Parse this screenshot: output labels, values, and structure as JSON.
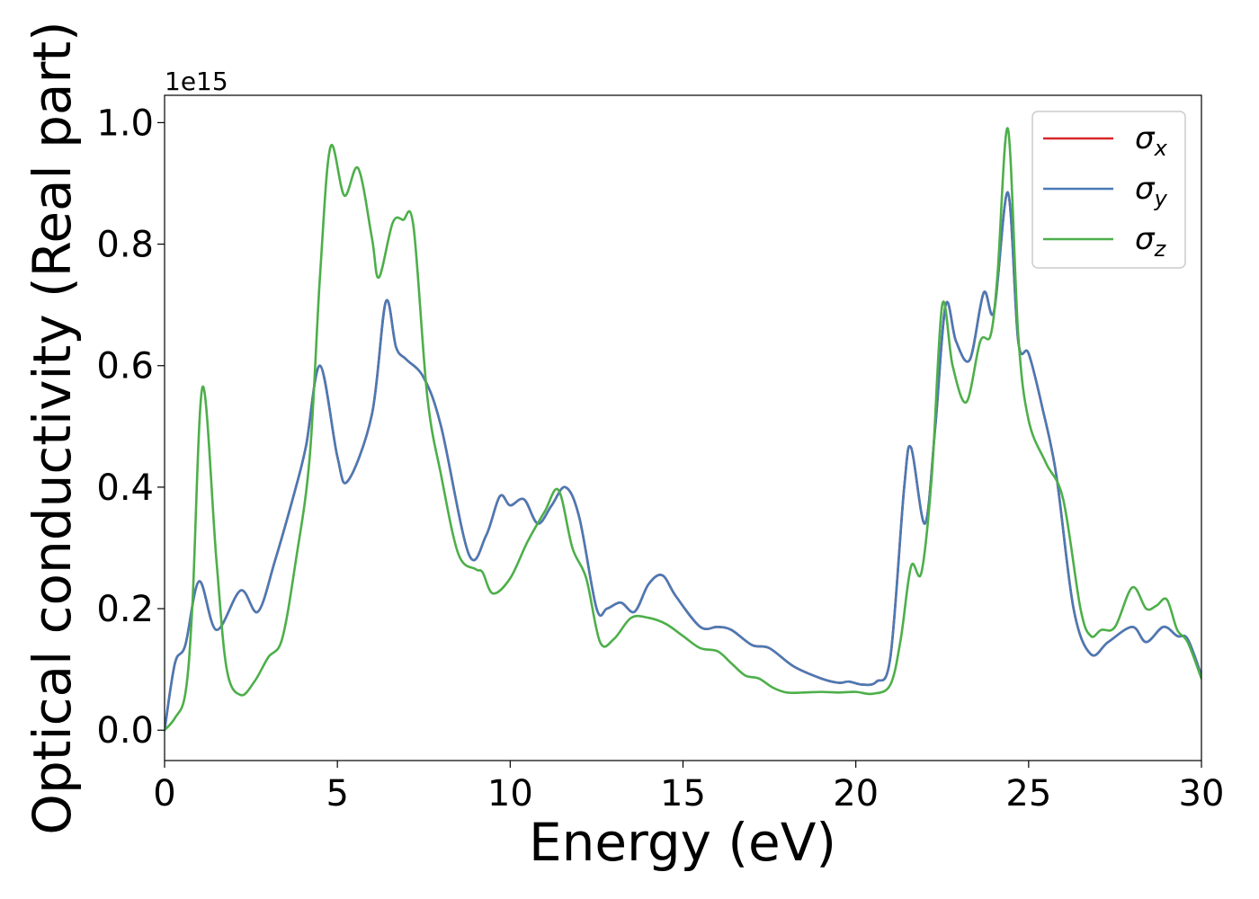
{
  "chart_data": {
    "type": "line",
    "xlabel": "Energy (eV)",
    "ylabel": "Optical conductivity (Real part)",
    "offset_text": "1e15",
    "xlim": [
      0,
      30
    ],
    "ylim": [
      -0.05,
      1.045
    ],
    "x_ticks": [
      0,
      5,
      10,
      15,
      20,
      25,
      30
    ],
    "y_ticks": [
      0.0,
      0.2,
      0.4,
      0.6,
      0.8,
      1.0
    ],
    "x_tick_labels": [
      "0",
      "5",
      "10",
      "15",
      "20",
      "25",
      "30"
    ],
    "y_tick_labels": [
      "0.0",
      "0.2",
      "0.4",
      "0.6",
      "0.8",
      "1.0"
    ],
    "grid": false,
    "legend_position": "top-right",
    "series": [
      {
        "name": "σx",
        "symbol": "σ",
        "subscript": "x",
        "color": "#d62728",
        "x": [
          0,
          0.3,
          0.6,
          1.0,
          1.5,
          2.2,
          2.7,
          3.2,
          3.8,
          4.1,
          4.5,
          5.0,
          5.3,
          6.0,
          6.4,
          6.7,
          7.0,
          7.5,
          8.0,
          8.8,
          9.3,
          9.7,
          10.0,
          10.4,
          10.8,
          11.2,
          11.6,
          12.0,
          12.5,
          12.8,
          13.2,
          13.6,
          14.0,
          14.4,
          14.8,
          15.5,
          16.0,
          16.4,
          17.0,
          17.5,
          18.2,
          19.0,
          19.5,
          19.8,
          20.2,
          20.6,
          21.0,
          21.4,
          21.6,
          22.0,
          22.3,
          22.6,
          22.9,
          23.3,
          23.7,
          24.0,
          24.4,
          24.7,
          25.0,
          25.4,
          25.8,
          26.3,
          26.8,
          27.3,
          28.0,
          28.4,
          28.9,
          29.3,
          29.6,
          30.0
        ],
        "y": [
          0.0,
          0.11,
          0.14,
          0.245,
          0.165,
          0.23,
          0.195,
          0.28,
          0.4,
          0.47,
          0.6,
          0.45,
          0.41,
          0.52,
          0.705,
          0.63,
          0.61,
          0.58,
          0.5,
          0.29,
          0.32,
          0.385,
          0.37,
          0.38,
          0.34,
          0.37,
          0.4,
          0.35,
          0.2,
          0.2,
          0.21,
          0.195,
          0.24,
          0.255,
          0.22,
          0.17,
          0.17,
          0.165,
          0.14,
          0.135,
          0.105,
          0.085,
          0.078,
          0.08,
          0.075,
          0.08,
          0.12,
          0.4,
          0.465,
          0.34,
          0.5,
          0.7,
          0.64,
          0.61,
          0.72,
          0.69,
          0.885,
          0.64,
          0.62,
          0.53,
          0.42,
          0.2,
          0.125,
          0.145,
          0.17,
          0.145,
          0.17,
          0.155,
          0.15,
          0.09
        ]
      },
      {
        "name": "σy",
        "symbol": "σ",
        "subscript": "y",
        "color": "#4a7ab5",
        "x": [
          0,
          0.3,
          0.6,
          1.0,
          1.5,
          2.2,
          2.7,
          3.2,
          3.8,
          4.1,
          4.5,
          5.0,
          5.3,
          6.0,
          6.4,
          6.7,
          7.0,
          7.5,
          8.0,
          8.8,
          9.3,
          9.7,
          10.0,
          10.4,
          10.8,
          11.2,
          11.6,
          12.0,
          12.5,
          12.8,
          13.2,
          13.6,
          14.0,
          14.4,
          14.8,
          15.5,
          16.0,
          16.4,
          17.0,
          17.5,
          18.2,
          19.0,
          19.5,
          19.8,
          20.2,
          20.6,
          21.0,
          21.4,
          21.6,
          22.0,
          22.3,
          22.6,
          22.9,
          23.3,
          23.7,
          24.0,
          24.4,
          24.7,
          25.0,
          25.4,
          25.8,
          26.3,
          26.8,
          27.3,
          28.0,
          28.4,
          28.9,
          29.3,
          29.6,
          30.0
        ],
        "y": [
          0.0,
          0.11,
          0.14,
          0.245,
          0.165,
          0.23,
          0.195,
          0.28,
          0.4,
          0.47,
          0.6,
          0.45,
          0.41,
          0.52,
          0.705,
          0.63,
          0.61,
          0.58,
          0.5,
          0.29,
          0.32,
          0.385,
          0.37,
          0.38,
          0.34,
          0.37,
          0.4,
          0.35,
          0.2,
          0.2,
          0.21,
          0.195,
          0.24,
          0.255,
          0.22,
          0.17,
          0.17,
          0.165,
          0.14,
          0.135,
          0.105,
          0.085,
          0.078,
          0.08,
          0.075,
          0.08,
          0.12,
          0.4,
          0.465,
          0.34,
          0.5,
          0.7,
          0.64,
          0.61,
          0.72,
          0.69,
          0.885,
          0.64,
          0.62,
          0.53,
          0.42,
          0.2,
          0.125,
          0.145,
          0.17,
          0.145,
          0.17,
          0.155,
          0.15,
          0.09
        ]
      },
      {
        "name": "σz",
        "symbol": "σ",
        "subscript": "z",
        "color": "#4daf4a",
        "x": [
          0,
          0.3,
          0.6,
          0.8,
          1.1,
          1.5,
          1.8,
          2.2,
          2.6,
          3.0,
          3.4,
          3.8,
          4.2,
          4.5,
          4.8,
          5.2,
          5.6,
          6.0,
          6.2,
          6.6,
          6.9,
          7.2,
          7.6,
          8.0,
          8.5,
          9.0,
          9.2,
          9.5,
          10.0,
          10.5,
          11.0,
          11.4,
          11.8,
          12.2,
          12.6,
          13.0,
          13.5,
          14.0,
          14.5,
          15.0,
          15.5,
          16.0,
          16.4,
          16.8,
          17.2,
          17.6,
          18.0,
          18.5,
          19.0,
          19.5,
          20.0,
          20.5,
          21.0,
          21.3,
          21.6,
          21.9,
          22.2,
          22.5,
          22.8,
          23.2,
          23.6,
          23.9,
          24.1,
          24.4,
          24.7,
          25.0,
          25.5,
          26.0,
          26.5,
          26.8,
          27.1,
          27.5,
          28.0,
          28.4,
          28.7,
          29.0,
          29.3,
          29.6,
          30.0
        ],
        "y": [
          0.0,
          0.02,
          0.06,
          0.2,
          0.565,
          0.28,
          0.1,
          0.058,
          0.08,
          0.12,
          0.15,
          0.28,
          0.45,
          0.75,
          0.96,
          0.88,
          0.925,
          0.81,
          0.745,
          0.835,
          0.84,
          0.83,
          0.55,
          0.42,
          0.29,
          0.265,
          0.26,
          0.225,
          0.25,
          0.31,
          0.36,
          0.395,
          0.3,
          0.25,
          0.145,
          0.15,
          0.185,
          0.185,
          0.175,
          0.155,
          0.135,
          0.13,
          0.11,
          0.09,
          0.085,
          0.07,
          0.062,
          0.062,
          0.063,
          0.062,
          0.063,
          0.06,
          0.075,
          0.15,
          0.27,
          0.26,
          0.42,
          0.7,
          0.6,
          0.54,
          0.64,
          0.65,
          0.75,
          0.99,
          0.65,
          0.51,
          0.44,
          0.38,
          0.2,
          0.155,
          0.165,
          0.17,
          0.235,
          0.2,
          0.205,
          0.215,
          0.165,
          0.145,
          0.085
        ]
      }
    ]
  }
}
